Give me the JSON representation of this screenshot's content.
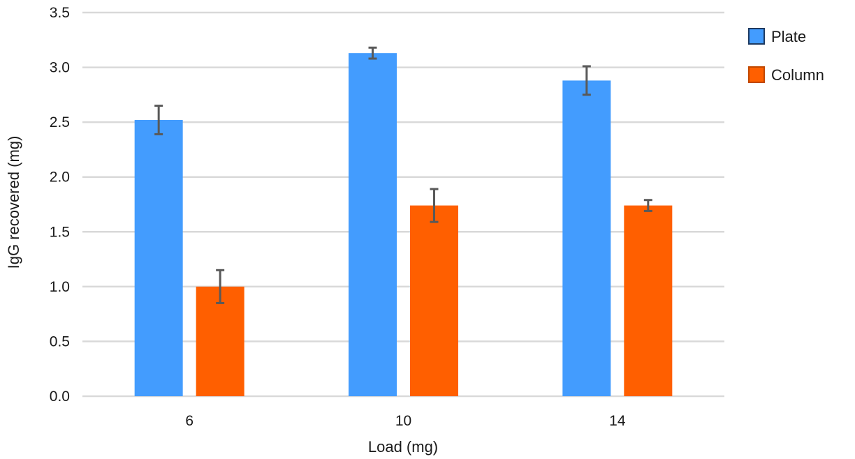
{
  "chart_data": {
    "type": "bar",
    "title": "",
    "xlabel": "Load (mg)",
    "ylabel": "IgG recovered (mg)",
    "ylim": [
      0,
      3.5
    ],
    "yticks": [
      "0.0",
      "0.5",
      "1.0",
      "1.5",
      "2.0",
      "2.5",
      "3.0",
      "3.5"
    ],
    "categories": [
      "6",
      "10",
      "14"
    ],
    "series": [
      {
        "name": "Plate",
        "color": "#439cfe",
        "values": [
          2.52,
          3.13,
          2.88
        ],
        "error": [
          0.13,
          0.05,
          0.13
        ]
      },
      {
        "name": "Column",
        "color": "#ff5f00",
        "values": [
          1.0,
          1.74,
          1.74
        ],
        "error": [
          0.15,
          0.15,
          0.05
        ]
      }
    ],
    "legend_position": "top-right",
    "grid": true
  }
}
